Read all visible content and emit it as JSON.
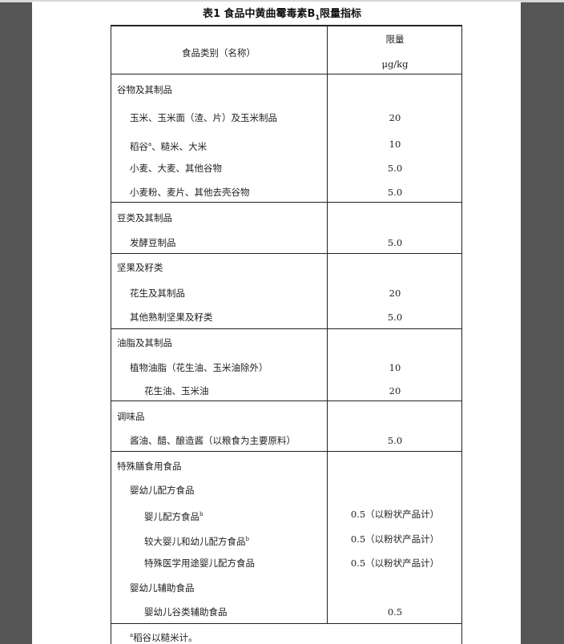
{
  "title": {
    "main": "表1 食品中黄曲霉毒素B",
    "sub": "1",
    "suffix": "限量指标"
  },
  "header": {
    "category": "食品类别（名称）",
    "limit": "限量",
    "unit": "μg/kg"
  },
  "groups": [
    {
      "rows": [
        {
          "label": "谷物及其制品",
          "level": 0,
          "value": ""
        },
        {
          "label": "玉米、玉米面（渣、片）及玉米制品",
          "level": 1,
          "value": "20"
        },
        {
          "label": "稻谷",
          "sup": "a",
          "label_rest": "、糙米、大米",
          "level": 1,
          "value": "10"
        },
        {
          "label": "小麦、大麦、其他谷物",
          "level": 1,
          "value": "5.0"
        },
        {
          "label": "小麦粉、麦片、其他去壳谷物",
          "level": 1,
          "value": "5.0"
        }
      ]
    },
    {
      "rows": [
        {
          "label": "豆类及其制品",
          "level": 0,
          "value": ""
        },
        {
          "label": "发酵豆制品",
          "level": 1,
          "value": "5.0"
        }
      ]
    },
    {
      "rows": [
        {
          "label": "坚果及籽类",
          "level": 0,
          "value": ""
        },
        {
          "label": "花生及其制品",
          "level": 1,
          "value": "20"
        },
        {
          "label": "其他熟制坚果及籽类",
          "level": 1,
          "value": "5.0"
        }
      ]
    },
    {
      "rows": [
        {
          "label": "油脂及其制品",
          "level": 0,
          "value": ""
        },
        {
          "label": "植物油脂（花生油、玉米油除外）",
          "level": 1,
          "value": "10"
        },
        {
          "label": "花生油、玉米油",
          "level": 2,
          "value": "20"
        }
      ]
    },
    {
      "rows": [
        {
          "label": "调味品",
          "level": 0,
          "value": ""
        },
        {
          "label": "酱油、醋、酿造酱（以粮食为主要原料）",
          "level": 1,
          "value": "5.0"
        }
      ]
    },
    {
      "rows": [
        {
          "label": "特殊膳食用食品",
          "level": 0,
          "value": ""
        },
        {
          "label": "婴幼儿配方食品",
          "level": 1,
          "value": ""
        },
        {
          "label": "婴儿配方食品",
          "sup": "b",
          "level": 2,
          "value": "0.5（以粉状产品计）"
        },
        {
          "label": "较大婴儿和幼儿配方食品",
          "sup": "b",
          "level": 2,
          "value": "0.5（以粉状产品计）"
        },
        {
          "label": "特殊医学用途婴儿配方食品",
          "level": 2,
          "value": "0.5（以粉状产品计）"
        },
        {
          "label": "婴幼儿辅助食品",
          "level": 1,
          "value": ""
        },
        {
          "label": "婴幼儿谷类辅助食品",
          "level": 2,
          "value": "0.5"
        }
      ]
    }
  ],
  "footnote": {
    "mark": "a",
    "text": "稻谷以糙米计。"
  }
}
